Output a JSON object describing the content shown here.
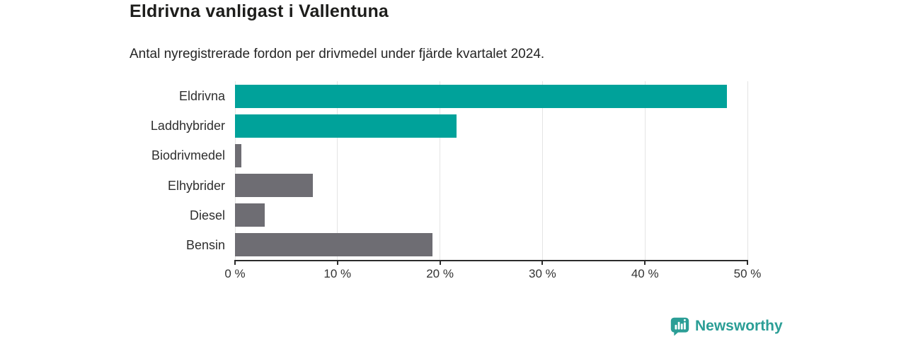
{
  "header": {
    "title": "Eldrivna vanligast i Vallentuna",
    "subtitle": "Antal nyregistrerade fordon per drivmedel under fjärde kvartalet 2024."
  },
  "chart_data": {
    "type": "bar",
    "orientation": "horizontal",
    "title": "Eldrivna vanligast i Vallentuna",
    "subtitle": "Antal nyregistrerade fordon per drivmedel under fjärde kvartalet 2024.",
    "categories": [
      "Eldrivna",
      "Laddhybrider",
      "Biodrivmedel",
      "Elhybrider",
      "Diesel",
      "Bensin"
    ],
    "values": [
      48.0,
      21.6,
      0.6,
      7.6,
      2.9,
      19.3
    ],
    "unit": "%",
    "bar_colors": [
      "#00a29a",
      "#00a29a",
      "#6e6d73",
      "#6e6d73",
      "#6e6d73",
      "#6e6d73"
    ],
    "xlim": [
      0,
      50
    ],
    "x_ticks": [
      0,
      10,
      20,
      30,
      40,
      50
    ],
    "x_tick_labels": [
      "0 %",
      "10 %",
      "20 %",
      "30 %",
      "40 %",
      "50 %"
    ],
    "grid": "vertical",
    "legend": "none",
    "xlabel": "",
    "ylabel": ""
  },
  "colors": {
    "highlight": "#00a29a",
    "base_gray": "#6e6d73",
    "gridline": "#e4e4e4",
    "axis": "#2b2b2b",
    "label_text": "#2e2e2e"
  },
  "branding": {
    "logo_text": "Newsworthy",
    "logo_color": "#2b9e96"
  }
}
